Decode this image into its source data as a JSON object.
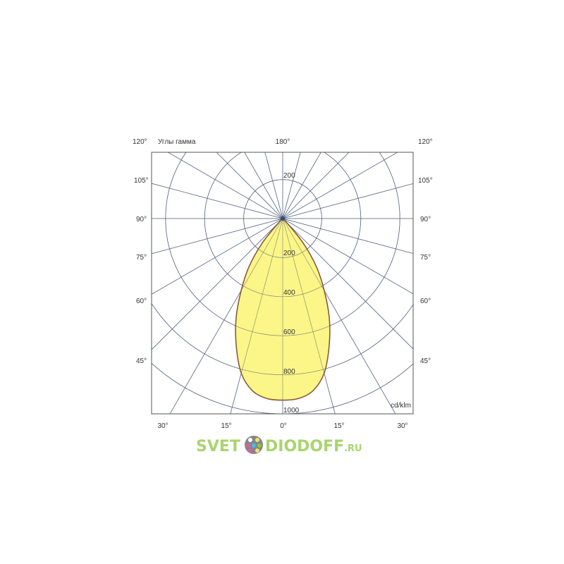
{
  "chart_data": {
    "type": "polar",
    "title": "Углы гамма",
    "unit_label": "cd/klm",
    "radial_ticks": [
      200,
      400,
      600,
      800,
      1000
    ],
    "radial_max": 1000,
    "angle_step_deg": 15,
    "angle_labels": {
      "top": "180°",
      "top_left": "120°",
      "top_right": "120°",
      "left": [
        "105°",
        "90°",
        "75°",
        "60°",
        "45°"
      ],
      "right": [
        "105°",
        "90°",
        "75°",
        "60°",
        "45°"
      ],
      "bottom": [
        "30°",
        "15°",
        "0°",
        "15°",
        "30°"
      ]
    },
    "ring_labels": {
      "upper": "200",
      "lower": [
        "200",
        "400",
        "600",
        "800",
        "1000"
      ]
    },
    "series": [
      {
        "angles_deg": [
          0,
          5,
          10,
          15,
          20,
          25,
          30,
          35,
          40,
          45,
          50
        ],
        "values": [
          930,
          925,
          895,
          820,
          695,
          565,
          425,
          300,
          160,
          25,
          0
        ],
        "symmetric": true,
        "fill": "#fbf57a",
        "stroke": "#8a5a3a"
      }
    ],
    "grid": true,
    "colors": {
      "grid": "#6f7f9a",
      "frame": "#555555"
    }
  },
  "watermark": {
    "left": "SVET",
    "right": "DIODOFF",
    "suffix": ".RU",
    "color": "#8dc63f"
  }
}
